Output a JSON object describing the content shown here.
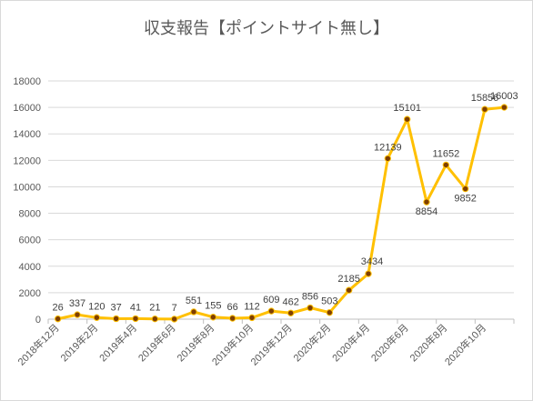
{
  "chart_data": {
    "type": "line",
    "title": "収支報告【ポイントサイト無し】",
    "xlabel": "",
    "ylabel": "",
    "ylim": [
      0,
      18000
    ],
    "yticks": [
      0,
      2000,
      4000,
      6000,
      8000,
      10000,
      12000,
      14000,
      16000,
      18000
    ],
    "ytick_labels": [
      "0",
      "2000",
      "4000",
      "6000",
      "8000",
      "10000",
      "12000",
      "14000",
      "16000",
      "18000"
    ],
    "x": [
      "2018年12月",
      "2019年1月",
      "2019年2月",
      "2019年3月",
      "2019年4月",
      "2019年5月",
      "2019年6月",
      "2019年7月",
      "2019年8月",
      "2019年9月",
      "2019年10月",
      "2019年11月",
      "2019年12月",
      "2020年1月",
      "2020年2月",
      "2020年3月",
      "2020年4月",
      "2020年5月",
      "2020年6月",
      "2020年7月",
      "2020年8月",
      "2020年9月",
      "2020年10月",
      "2020年11月"
    ],
    "x_tick_labels_shown": [
      "2018年12月",
      "2019年2月",
      "2019年4月",
      "2019年6月",
      "2019年8月",
      "2019年10月",
      "2019年12月",
      "2020年2月",
      "2020年4月",
      "2020年6月",
      "2020年8月",
      "2020年10月"
    ],
    "series": [
      {
        "values": [
          26,
          337,
          120,
          37,
          41,
          21,
          7,
          551,
          155,
          66,
          112,
          609,
          462,
          856,
          503,
          2185,
          3434,
          12139,
          15101,
          8854,
          11652,
          9852,
          15856,
          16003
        ],
        "labels": [
          "26",
          "337",
          "120",
          "37",
          "41",
          "21",
          "7",
          "551",
          "155",
          "66",
          "112",
          "609",
          "462",
          "856",
          "503",
          "2185",
          "3434",
          "12139",
          "15101",
          "8854",
          "11652",
          "9852",
          "15856",
          "16003"
        ]
      }
    ],
    "grid": true,
    "legend": "none",
    "colors": {
      "line": "#ffc000",
      "marker": "#7f3f00",
      "grid": "#d9d9d9",
      "text": "#595959"
    }
  }
}
